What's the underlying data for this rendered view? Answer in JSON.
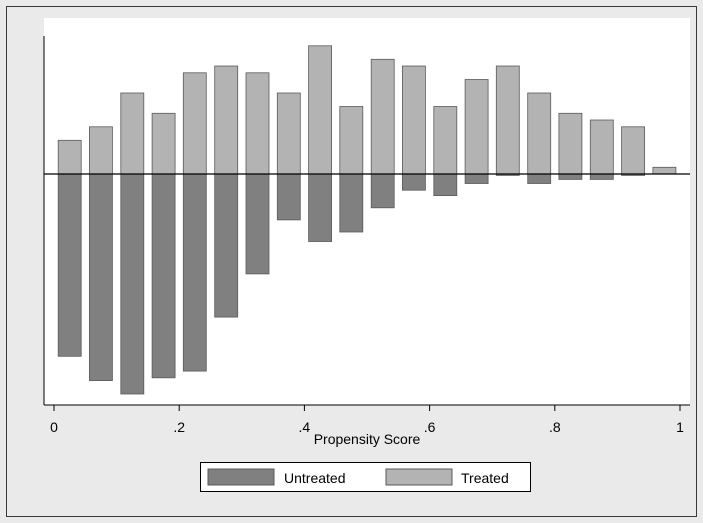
{
  "chart_data": {
    "type": "bar",
    "xlabel": "Propensity Score",
    "ylabel": "",
    "xlim": [
      0,
      1
    ],
    "x_ticks": [
      {
        "value": 0,
        "label": "0"
      },
      {
        "value": 0.2,
        "label": ".2"
      },
      {
        "value": 0.4,
        "label": ".4"
      },
      {
        "value": 0.6,
        "label": ".6"
      },
      {
        "value": 0.8,
        "label": ".8"
      },
      {
        "value": 1,
        "label": "1"
      }
    ],
    "bin_width": 0.05,
    "grid": false,
    "legend_placement": "bottom",
    "series": [
      {
        "name": "Treated",
        "direction": "up",
        "color": "#b3b3b3",
        "x": [
          0.025,
          0.075,
          0.125,
          0.175,
          0.225,
          0.275,
          0.325,
          0.375,
          0.425,
          0.475,
          0.525,
          0.575,
          0.625,
          0.675,
          0.725,
          0.775,
          0.825,
          0.875,
          0.925,
          0.975
        ],
        "values": [
          0.25,
          0.35,
          0.6,
          0.45,
          0.75,
          0.8,
          0.75,
          0.6,
          0.95,
          0.5,
          0.85,
          0.8,
          0.5,
          0.7,
          0.8,
          0.6,
          0.45,
          0.4,
          0.35,
          0.05
        ]
      },
      {
        "name": "Untreated",
        "direction": "down",
        "color": "#808080",
        "x": [
          0.025,
          0.075,
          0.125,
          0.175,
          0.225,
          0.275,
          0.325,
          0.375,
          0.425,
          0.475,
          0.525,
          0.575,
          0.625,
          0.675,
          0.725,
          0.775,
          0.825,
          0.875,
          0.925
        ],
        "values": [
          1.35,
          1.53,
          1.63,
          1.51,
          1.46,
          1.06,
          0.74,
          0.34,
          0.5,
          0.43,
          0.25,
          0.12,
          0.16,
          0.07,
          0.01,
          0.07,
          0.04,
          0.04,
          0.01
        ]
      }
    ],
    "legend": [
      {
        "label": "Untreated",
        "color": "#808080"
      },
      {
        "label": "Treated",
        "color": "#b3b3b3"
      }
    ]
  },
  "colors": {
    "page_background": "#eaeaea",
    "plot_background": "#ffffff",
    "bar_outline": "#5a5a5a"
  }
}
